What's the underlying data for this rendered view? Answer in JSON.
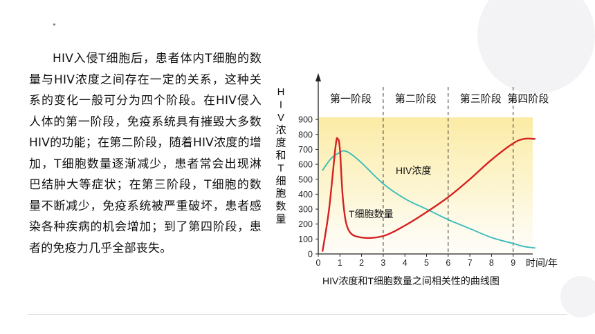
{
  "paragraph": "HIV入侵T细胞后，患者体内T细胞的数量与HIV浓度之间存在一定的关系，这种关系的变化一般可分为四个阶段。在HIV侵入人体的第一阶段，免疫系统具有摧毁大多数HIV的功能；在第二阶段，随着HIV浓度的增加，T细胞数量逐渐减少，患者常会出现淋巴结肿大等症状；在第三阶段，T细胞的数量不断减少，免疫系统被严重破坏，患者感染各种疾病的机会增加；到了第四阶段，患者的免疫力几乎全部丧失。",
  "chart_data": {
    "type": "line",
    "title": "HIV浓度和T细胞数量之间相关性的曲线图",
    "xlabel": "时间/年",
    "ylabel": "HIV浓度和T细胞数量",
    "x_ticks": [
      0,
      1,
      2,
      3,
      4,
      5,
      6,
      7,
      8,
      9
    ],
    "y_ticks": [
      0,
      100,
      200,
      300,
      400,
      500,
      600,
      700,
      800,
      900
    ],
    "xlim": [
      0,
      10
    ],
    "ylim": [
      0,
      1000
    ],
    "stages": [
      {
        "label": "第一阶段",
        "start": 0,
        "end": 3
      },
      {
        "label": "第二阶段",
        "start": 3,
        "end": 6
      },
      {
        "label": "第三阶段",
        "start": 6,
        "end": 9
      },
      {
        "label": "第四阶段",
        "start": 9,
        "end": 10
      }
    ],
    "series": [
      {
        "name": "HIV浓度",
        "color": "#d42020",
        "x": [
          0.2,
          0.5,
          0.8,
          0.9,
          1.0,
          1.15,
          1.4,
          2.0,
          3.0,
          4.0,
          5.0,
          6.0,
          7.0,
          8.0,
          9.0,
          9.5,
          10.0
        ],
        "y": [
          20,
          300,
          720,
          770,
          700,
          350,
          160,
          110,
          120,
          190,
          280,
          380,
          500,
          630,
          740,
          770,
          770
        ]
      },
      {
        "name": "T细胞数量",
        "color": "#3cbcbc",
        "x": [
          0.2,
          0.6,
          1.0,
          1.2,
          1.5,
          2.0,
          3.0,
          4.0,
          5.0,
          6.0,
          7.0,
          8.0,
          9.0,
          9.5,
          10.0
        ],
        "y": [
          560,
          640,
          680,
          690,
          670,
          610,
          470,
          370,
          300,
          230,
          170,
          110,
          70,
          50,
          40
        ]
      }
    ],
    "annotations": {
      "hiv": "HIV浓度",
      "tcell": "T细胞数量"
    }
  }
}
